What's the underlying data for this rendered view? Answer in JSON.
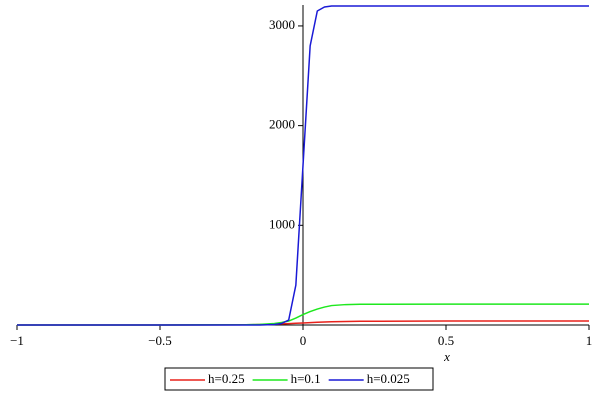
{
  "chart_data": {
    "type": "line",
    "x_label": "x",
    "x": [
      -1,
      -0.5,
      -0.2,
      -0.15,
      -0.1,
      -0.075,
      -0.05,
      -0.025,
      0,
      0.025,
      0.05,
      0.075,
      0.1,
      0.15,
      0.2,
      0.5,
      1
    ],
    "series": [
      {
        "name": "h=0.25",
        "color": "#e8221c",
        "values": [
          0,
          0,
          3,
          5,
          8,
          11,
          14,
          17,
          20,
          24,
          27,
          30,
          32,
          35,
          37,
          40,
          40
        ]
      },
      {
        "name": "h=0.1",
        "color": "#1ee81e",
        "values": [
          0,
          0,
          2,
          6,
          15,
          25,
          40,
          70,
          105,
          135,
          160,
          180,
          195,
          205,
          208,
          210,
          210
        ]
      },
      {
        "name": "h=0.025",
        "color": "#1a1ad6",
        "values": [
          0,
          0,
          0,
          0,
          5,
          15,
          50,
          400,
          1600,
          2800,
          3150,
          3190,
          3200,
          3200,
          3200,
          3200,
          3200
        ]
      }
    ],
    "xlim": [
      -1,
      1
    ],
    "ylim": [
      0,
      3210
    ],
    "xticks": [
      {
        "value": -1,
        "label": "−1"
      },
      {
        "value": -0.5,
        "label": "−0.5"
      },
      0,
      0.5,
      1
    ],
    "yticks": [
      1000,
      2000,
      3000
    ],
    "legend": "bottom"
  }
}
